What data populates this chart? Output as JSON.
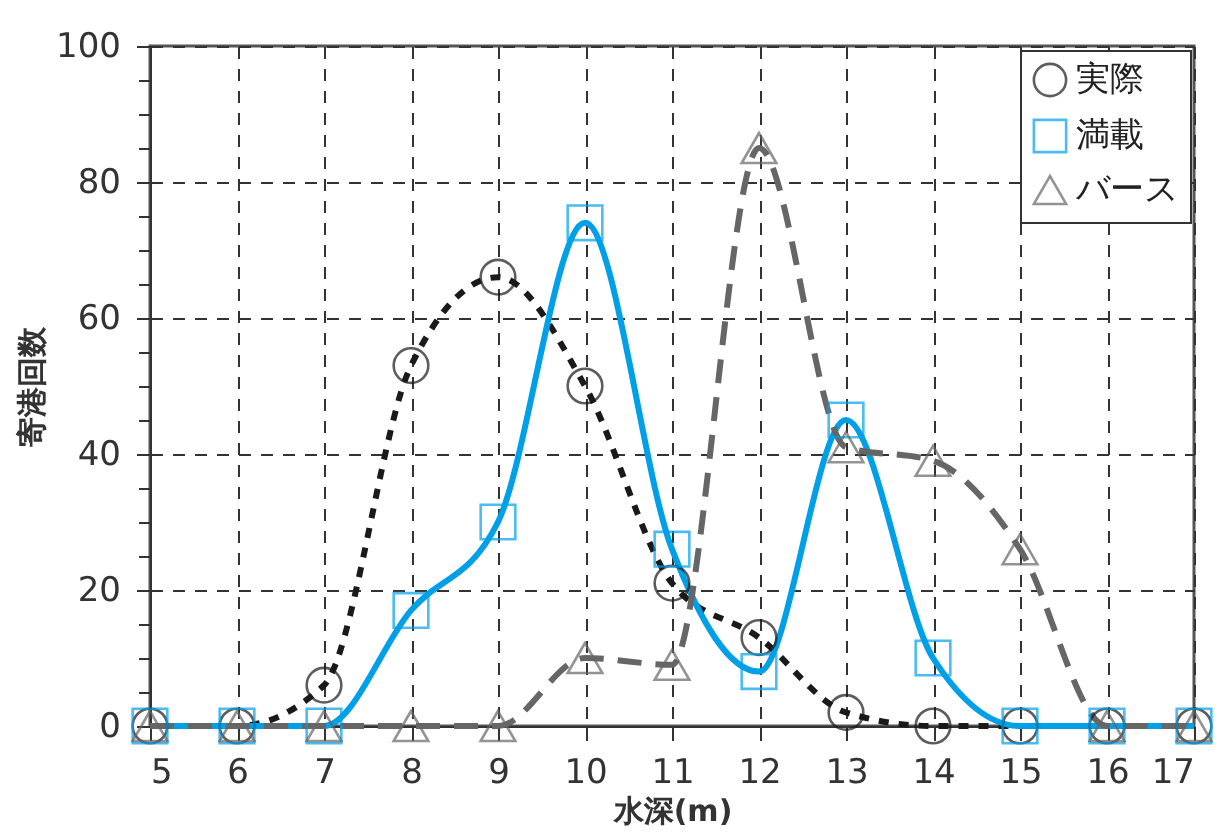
{
  "chart_data": {
    "type": "line",
    "xlabel": "水深(m)",
    "ylabel": "寄港回数",
    "x": [
      5,
      6,
      7,
      8,
      9,
      10,
      11,
      12,
      13,
      14,
      15,
      16,
      17
    ],
    "series": [
      {
        "name": "実際",
        "color": "#1a1a1a",
        "marker": "circle",
        "line_style": "dotted",
        "values": [
          0,
          0,
          6,
          53,
          66,
          50,
          21,
          13,
          2,
          0,
          0,
          0,
          0
        ]
      },
      {
        "name": "満載",
        "color": "#00a0e9",
        "marker": "square",
        "line_style": "solid",
        "values": [
          0,
          0,
          0,
          17,
          30,
          74,
          26,
          8,
          45,
          10,
          0,
          0,
          0
        ]
      },
      {
        "name": "バース",
        "color": "#666666",
        "marker": "triangle",
        "line_style": "dashed",
        "values": [
          0,
          0,
          0,
          0,
          0,
          10,
          9,
          85,
          41,
          39,
          26,
          0,
          0
        ]
      }
    ],
    "xlim": [
      5,
      17
    ],
    "xticks": [
      5,
      6,
      7,
      8,
      9,
      10,
      11,
      12,
      13,
      14,
      15,
      16,
      17
    ],
    "ylim": [
      0,
      100
    ],
    "yticks": [
      0,
      {
        "value": 5,
        "label": null
      },
      {
        "value": 10,
        "label": null
      },
      {
        "value": 15,
        "label": null
      },
      20,
      {
        "value": 25,
        "label": null
      },
      {
        "value": 30,
        "label": null
      },
      {
        "value": 35,
        "label": null
      },
      40,
      {
        "value": 45,
        "label": null
      },
      {
        "value": 50,
        "label": null
      },
      {
        "value": 55,
        "label": null
      },
      60,
      {
        "value": 65,
        "label": null
      },
      {
        "value": 70,
        "label": null
      },
      {
        "value": 75,
        "label": null
      },
      80,
      {
        "value": 85,
        "label": null
      },
      {
        "value": 90,
        "label": null
      },
      {
        "value": 95,
        "label": null
      },
      100
    ],
    "grid": true,
    "legend": "top right"
  }
}
